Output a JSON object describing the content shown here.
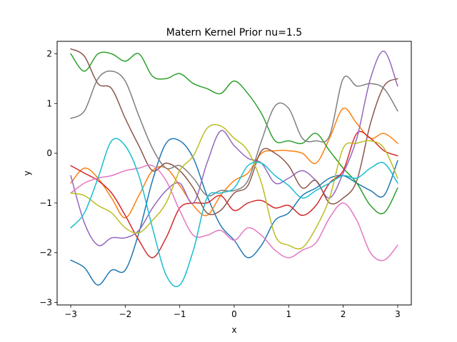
{
  "chart_data": {
    "type": "line",
    "title": "Matern Kernel Prior nu=1.5",
    "xlabel": "x",
    "ylabel": "y",
    "xlim": [
      -3.25,
      3.25
    ],
    "ylim": [
      -3.05,
      2.25
    ],
    "xticks": [
      -3,
      -2,
      -1,
      0,
      1,
      2,
      3
    ],
    "xtick_labels": [
      "−3",
      "−2",
      "−1",
      "0",
      "1",
      "2",
      "3"
    ],
    "yticks": [
      -3,
      -2,
      -1,
      0,
      1,
      2
    ],
    "ytick_labels": [
      "−3",
      "−2",
      "−1",
      "0",
      "1",
      "2"
    ],
    "grid": false,
    "legend": "none",
    "x": [
      -3.0,
      -2.75,
      -2.5,
      -2.25,
      -2.0,
      -1.75,
      -1.5,
      -1.25,
      -1.0,
      -0.75,
      -0.5,
      -0.25,
      0.0,
      0.25,
      0.5,
      0.75,
      1.0,
      1.25,
      1.5,
      1.75,
      2.0,
      2.25,
      2.5,
      2.75,
      3.0
    ],
    "series": [
      {
        "color": "#1f77b4",
        "values": [
          -2.15,
          -2.3,
          -2.65,
          -2.35,
          -2.35,
          -1.6,
          -0.55,
          0.2,
          0.25,
          -0.1,
          -0.85,
          -1.45,
          -1.75,
          -2.1,
          -1.85,
          -1.35,
          -1.2,
          -0.85,
          -0.7,
          -0.5,
          -0.45,
          -0.6,
          -0.75,
          -0.85,
          -0.15
        ]
      },
      {
        "color": "#ff7f0e",
        "values": [
          -0.6,
          -0.3,
          -0.5,
          -0.9,
          -1.3,
          -0.85,
          -0.35,
          -0.3,
          -0.65,
          -1.05,
          -1.25,
          -0.85,
          -0.55,
          -0.4,
          0.0,
          0.05,
          0.05,
          0.0,
          -0.2,
          0.3,
          0.9,
          0.6,
          0.3,
          0.4,
          0.2
        ]
      },
      {
        "color": "#2ca02c",
        "values": [
          2.0,
          1.65,
          2.0,
          2.0,
          1.85,
          2.0,
          1.55,
          1.5,
          1.6,
          1.4,
          1.3,
          1.2,
          1.45,
          1.2,
          0.8,
          0.25,
          0.25,
          0.2,
          0.4,
          0.05,
          -0.3,
          -0.6,
          -1.05,
          -1.2,
          -0.7
        ]
      },
      {
        "color": "#d62728",
        "values": [
          -0.25,
          -0.4,
          -0.55,
          -0.8,
          -1.25,
          -1.75,
          -2.1,
          -1.7,
          -1.1,
          -1.0,
          -1.0,
          -0.85,
          -1.15,
          -1.0,
          -0.95,
          -1.1,
          -1.05,
          -1.25,
          -1.05,
          -0.6,
          -0.35,
          0.4,
          0.3,
          0.05,
          -0.05
        ]
      },
      {
        "color": "#9467bd",
        "values": [
          -0.45,
          -1.4,
          -1.85,
          -1.7,
          -1.7,
          -1.55,
          -1.1,
          -0.75,
          -0.6,
          -1.0,
          -0.2,
          0.45,
          0.15,
          -0.1,
          -0.2,
          -0.6,
          -0.5,
          -0.35,
          -0.55,
          -0.9,
          -0.4,
          0.3,
          1.5,
          2.05,
          1.35
        ]
      },
      {
        "color": "#8c564b",
        "values": [
          2.1,
          1.95,
          1.4,
          1.3,
          0.7,
          0.15,
          -0.35,
          -0.2,
          -0.35,
          -0.7,
          -1.2,
          -1.15,
          -0.8,
          -0.65,
          0.05,
          0.0,
          -0.25,
          -0.7,
          -0.55,
          -1.0,
          -0.9,
          -0.55,
          0.6,
          1.35,
          1.5
        ]
      },
      {
        "color": "#e377c2",
        "values": [
          -0.8,
          -0.6,
          -0.5,
          -0.45,
          -0.35,
          -0.3,
          -0.25,
          -0.55,
          -1.15,
          -1.65,
          -1.65,
          -1.55,
          -1.75,
          -1.5,
          -1.65,
          -1.95,
          -2.1,
          -1.95,
          -1.8,
          -1.3,
          -1.0,
          -1.35,
          -2.0,
          -2.15,
          -1.85
        ]
      },
      {
        "color": "#7f7f7f",
        "values": [
          0.7,
          0.85,
          1.5,
          1.65,
          1.45,
          0.75,
          0.1,
          -0.3,
          -0.25,
          -0.5,
          -0.85,
          -0.75,
          -0.75,
          -0.55,
          0.25,
          0.95,
          0.9,
          0.3,
          0.25,
          0.35,
          1.5,
          1.35,
          1.4,
          1.3,
          0.85
        ]
      },
      {
        "color": "#bcbd22",
        "values": [
          -0.8,
          -0.85,
          -1.05,
          -1.2,
          -1.5,
          -1.6,
          -1.35,
          -1.0,
          -0.35,
          -0.05,
          0.5,
          0.55,
          0.3,
          0.05,
          -0.6,
          -1.65,
          -1.85,
          -1.9,
          -1.5,
          -0.9,
          0.1,
          0.2,
          0.25,
          0.1,
          -0.5
        ]
      },
      {
        "color": "#17becf",
        "values": [
          -1.5,
          -1.2,
          -0.5,
          0.25,
          0.15,
          -0.45,
          -1.5,
          -2.45,
          -2.65,
          -1.95,
          -0.9,
          -0.8,
          -0.7,
          -0.25,
          -0.2,
          -0.45,
          -0.65,
          -0.9,
          -0.75,
          -0.6,
          -0.45,
          -0.5,
          -0.3,
          -0.2,
          -0.6
        ]
      }
    ]
  }
}
